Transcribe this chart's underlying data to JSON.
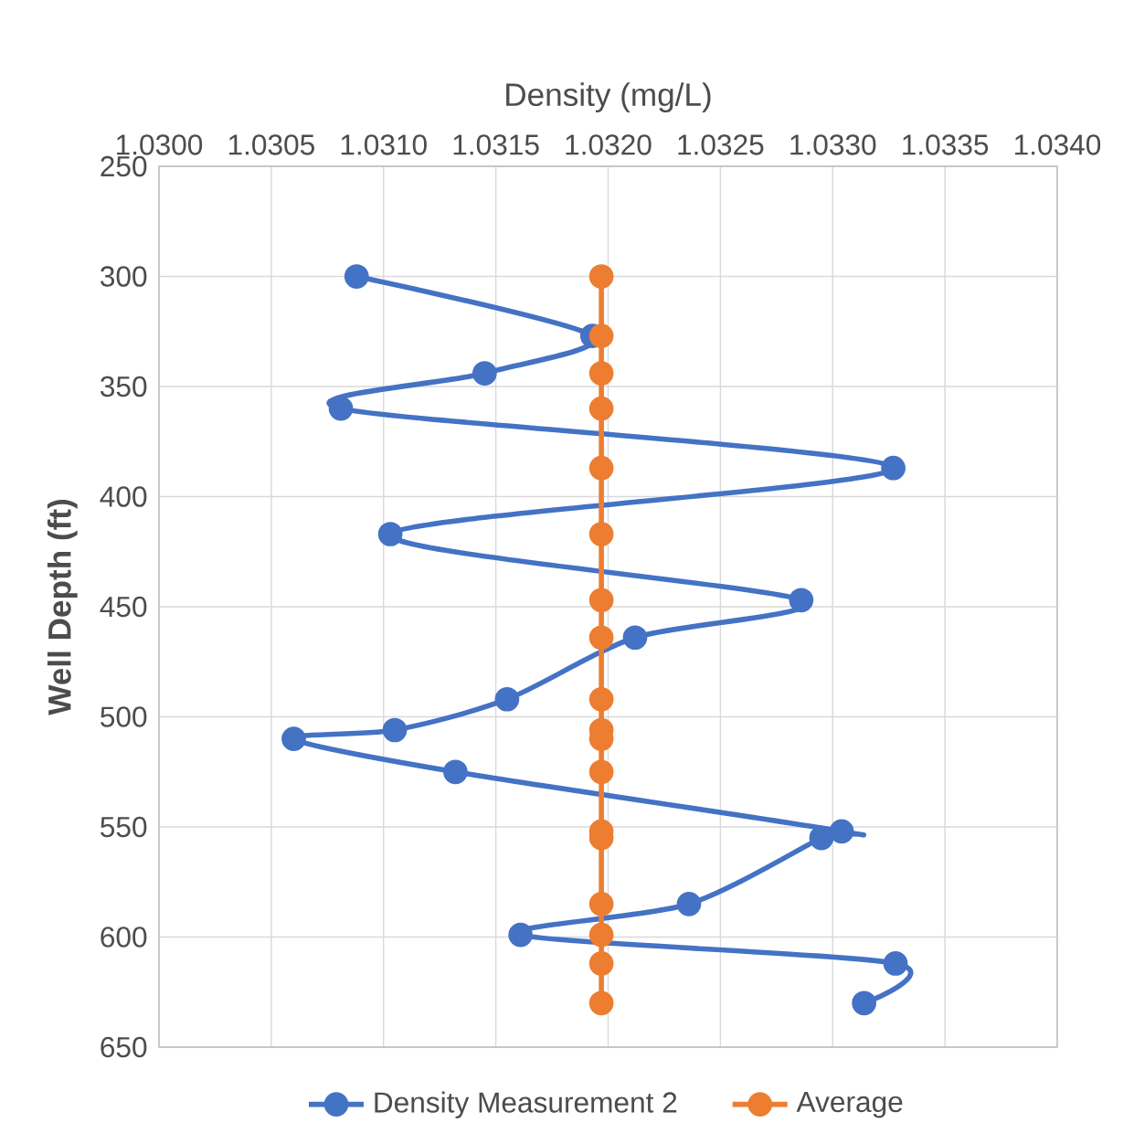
{
  "chart_data": {
    "type": "line",
    "xlabel": "Density (mg/L)",
    "ylabel": "Well Depth (ft)",
    "xlim": [
      1.03,
      1.034
    ],
    "xticks": [
      {
        "value": 1.03,
        "label": "1.0300"
      },
      {
        "value": 1.0305,
        "label": "1.0305"
      },
      {
        "value": 1.031,
        "label": "1.0310"
      },
      {
        "value": 1.0315,
        "label": "1.0315"
      },
      {
        "value": 1.032,
        "label": "1.0320"
      },
      {
        "value": 1.0325,
        "label": "1.0325"
      },
      {
        "value": 1.033,
        "label": "1.0330"
      },
      {
        "value": 1.0335,
        "label": "1.0335"
      },
      {
        "value": 1.034,
        "label": "1.0340"
      }
    ],
    "ylim": [
      650,
      250
    ],
    "yticks": [
      250,
      300,
      350,
      400,
      450,
      500,
      550,
      600,
      650
    ],
    "grid": true,
    "legend": "bottom",
    "marker": "circle",
    "line_style": "solid",
    "series": [
      {
        "name": "Density Measurement 2",
        "color": "#4472c4",
        "x": [
          1.03088,
          1.03193,
          1.03145,
          1.03081,
          1.03327,
          1.03103,
          1.03286,
          1.03212,
          1.03155,
          1.03105,
          1.0306,
          1.03132,
          1.03304,
          1.03295,
          1.03236,
          1.03161,
          1.03328,
          1.03314
        ],
        "values": [
          300,
          327,
          344,
          360,
          387,
          417,
          447,
          464,
          492,
          506,
          510,
          525,
          552,
          555,
          585,
          599,
          612,
          630
        ]
      },
      {
        "name": "Average",
        "color": "#ed7d31",
        "x": [
          1.03197,
          1.03197,
          1.03197,
          1.03197,
          1.03197,
          1.03197,
          1.03197,
          1.03197,
          1.03197,
          1.03197,
          1.03197,
          1.03197,
          1.03197,
          1.03197,
          1.03197,
          1.03197,
          1.03197,
          1.03197
        ],
        "values": [
          300,
          327,
          344,
          360,
          387,
          417,
          447,
          464,
          492,
          506,
          510,
          525,
          552,
          555,
          585,
          599,
          612,
          630
        ]
      }
    ]
  }
}
